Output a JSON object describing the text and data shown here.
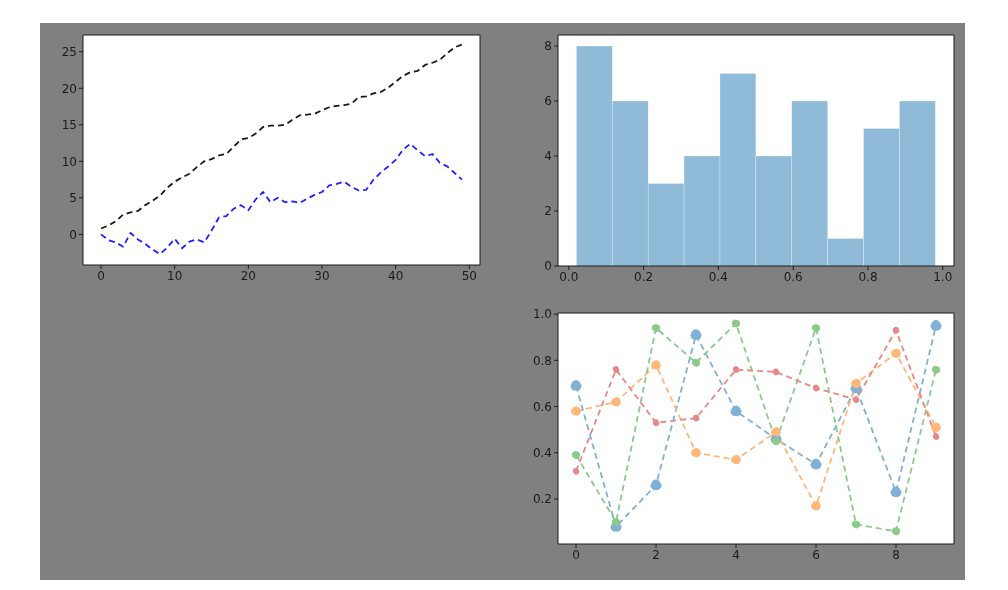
{
  "chart_data": [
    {
      "type": "line",
      "x": [
        0,
        1,
        2,
        3,
        4,
        5,
        6,
        7,
        8,
        9,
        10,
        11,
        12,
        13,
        14,
        15,
        16,
        17,
        18,
        19,
        20,
        21,
        22,
        23,
        24,
        25,
        26,
        27,
        28,
        29,
        30,
        31,
        32,
        33,
        34,
        35,
        36,
        37,
        38,
        39,
        40,
        41,
        42,
        43,
        44,
        45,
        46,
        47,
        48,
        49
      ],
      "line_style": "dashed",
      "marker": "none",
      "xlim": [
        -2.45,
        51.45
      ],
      "ylim": [
        -4.2,
        27.3
      ],
      "xticks": [
        0,
        10,
        20,
        30,
        40,
        50
      ],
      "yticks": [
        0,
        5,
        10,
        15,
        20,
        25
      ],
      "series": [
        {
          "color": "#1a1a1a",
          "values": [
            0.8,
            1.2,
            1.8,
            2.7,
            3.0,
            3.2,
            4.0,
            4.6,
            5.3,
            6.4,
            7.2,
            7.8,
            8.3,
            9.2,
            10.0,
            10.3,
            10.8,
            11.0,
            12.0,
            13.0,
            13.2,
            13.8,
            14.7,
            14.9,
            14.9,
            15.0,
            15.7,
            16.3,
            16.4,
            16.5,
            17.0,
            17.4,
            17.6,
            17.7,
            17.9,
            18.8,
            18.9,
            19.3,
            19.5,
            20.1,
            20.9,
            21.7,
            22.2,
            22.4,
            23.2,
            23.5,
            23.9,
            24.8,
            25.6,
            26.0
          ]
        },
        {
          "color": "#2020ff",
          "values": [
            0,
            -0.8,
            -1.1,
            -1.7,
            0.2,
            -0.7,
            -1.3,
            -2.1,
            -2.7,
            -1.8,
            -0.6,
            -1.9,
            -1.0,
            -0.7,
            -1.1,
            0.5,
            2.3,
            2.5,
            3.5,
            4.0,
            3.3,
            4.8,
            5.8,
            4.4,
            5.0,
            4.4,
            4.5,
            4.3,
            4.9,
            5.4,
            5.8,
            6.7,
            6.9,
            7.2,
            6.5,
            6.0,
            6.1,
            7.5,
            8.5,
            9.3,
            10.2,
            11.6,
            12.4,
            11.5,
            10.7,
            11.0,
            9.8,
            9.3,
            8.4,
            7.5
          ]
        }
      ]
    },
    {
      "type": "histogram",
      "bins": [
        0.02,
        0.116,
        0.212,
        0.308,
        0.404,
        0.5,
        0.596,
        0.692,
        0.788,
        0.884,
        0.98
      ],
      "values": [
        8,
        6,
        3,
        4,
        7,
        4,
        6,
        1,
        5,
        6
      ],
      "color": "#8fbbd9",
      "xlim": [
        -0.029,
        1.03
      ],
      "ylim": [
        0,
        8.4
      ],
      "xticks": [
        {
          "value": 0,
          "label": "0.0"
        },
        0.2,
        0.4,
        0.6,
        0.8,
        {
          "value": 1,
          "label": "1.0"
        }
      ],
      "yticks": [
        0,
        2,
        4,
        6,
        8
      ]
    },
    {
      "type": "line",
      "x": [
        0,
        1,
        2,
        3,
        4,
        5,
        6,
        7,
        8,
        9
      ],
      "line_style": "dashed",
      "marker": "circle",
      "xlim": [
        -0.45,
        9.45
      ],
      "ylim": [
        0.005,
        1.005
      ],
      "xticks": [
        0,
        2,
        4,
        6,
        8
      ],
      "yticks": [
        0.2,
        0.4,
        0.6,
        0.8,
        {
          "value": 1,
          "label": "1.0"
        }
      ],
      "series": [
        {
          "color": "#7fb1d6",
          "values": [
            0.69,
            0.08,
            0.26,
            0.91,
            0.58,
            0.46,
            0.35,
            0.68,
            0.23,
            0.95
          ]
        },
        {
          "color": "#ffb77a",
          "values": [
            0.58,
            0.62,
            0.78,
            0.4,
            0.37,
            0.49,
            0.17,
            0.7,
            0.83,
            0.51
          ]
        },
        {
          "color": "#8acb8a",
          "values": [
            0.39,
            0.1,
            0.94,
            0.79,
            0.96,
            0.45,
            0.94,
            0.09,
            0.06,
            0.76
          ]
        },
        {
          "color": "#e88787",
          "values": [
            0.32,
            0.76,
            0.53,
            0.55,
            0.76,
            0.75,
            0.68,
            0.63,
            0.93,
            0.47
          ]
        }
      ]
    }
  ]
}
